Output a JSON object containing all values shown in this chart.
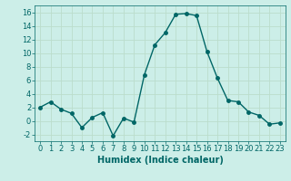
{
  "x": [
    0,
    1,
    2,
    3,
    4,
    5,
    6,
    7,
    8,
    9,
    10,
    11,
    12,
    13,
    14,
    15,
    16,
    17,
    18,
    19,
    20,
    21,
    22,
    23
  ],
  "y": [
    2,
    2.8,
    1.7,
    1.1,
    -1.0,
    0.5,
    1.2,
    -2.2,
    0.4,
    -0.2,
    6.8,
    11.2,
    13.0,
    15.7,
    15.8,
    15.5,
    10.2,
    6.3,
    3.0,
    2.8,
    1.3,
    0.8,
    -0.5,
    -0.3
  ],
  "line_color": "#006666",
  "marker": "o",
  "marker_size": 2.5,
  "linewidth": 1.0,
  "xlabel": "Humidex (Indice chaleur)",
  "xlim": [
    -0.5,
    23.5
  ],
  "ylim": [
    -3,
    17
  ],
  "yticks": [
    -2,
    0,
    2,
    4,
    6,
    8,
    10,
    12,
    14,
    16
  ],
  "xticks": [
    0,
    1,
    2,
    3,
    4,
    5,
    6,
    7,
    8,
    9,
    10,
    11,
    12,
    13,
    14,
    15,
    16,
    17,
    18,
    19,
    20,
    21,
    22,
    23
  ],
  "bg_color": "#cceee8",
  "grid_color": "#aaddcc",
  "line_grid_color": "#bbddcc",
  "tick_color": "#006666",
  "label_color": "#006666",
  "xlabel_fontsize": 7,
  "tick_fontsize": 6
}
